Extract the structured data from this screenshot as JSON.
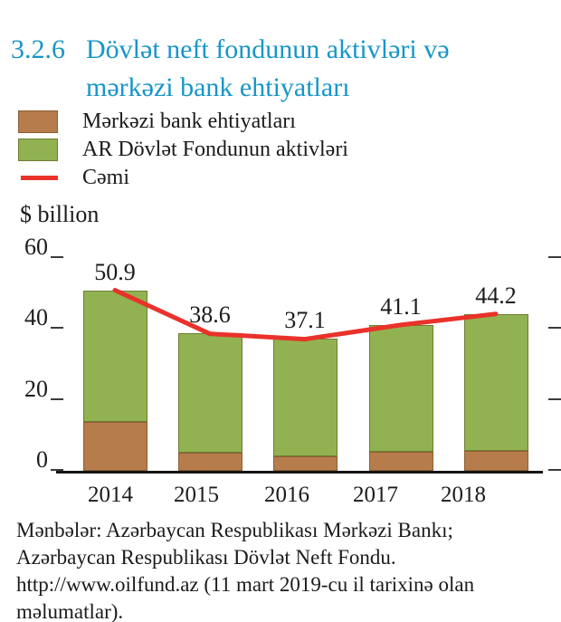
{
  "title": {
    "number": "3.2.6",
    "line1": "Dövlət neft fondunun aktivləri və",
    "line2": "mərkəzi bank ehtiyatları",
    "color": "#1796c8"
  },
  "legend": {
    "items": [
      {
        "label": "Mərkəzi bank ehtiyatları",
        "swatch": "rect",
        "color": "#b77c4b",
        "border": "#8c5f33"
      },
      {
        "label": "AR Dövlət Fondunun aktivləri",
        "swatch": "rect",
        "color": "#92b251",
        "border": "#6e7d35"
      },
      {
        "label": "Cəmi",
        "swatch": "line",
        "color": "#e93229",
        "border": "#e93229"
      }
    ]
  },
  "chart_data": {
    "type": "bar",
    "subtype": "stacked-bars-with-total-line",
    "title": "Dövlət neft fondunun aktivləri və mərkəzi bank ehtiyatları",
    "ylabel": "$ billion",
    "xlabel": "",
    "categories": [
      "2014",
      "2015",
      "2016",
      "2017",
      "2018"
    ],
    "series": [
      {
        "name": "Mərkəzi bank ehtiyatları",
        "color": "#b77c4b",
        "border": "#8c5f33",
        "values": [
          13.8,
          5.0,
          4.0,
          5.3,
          5.6
        ]
      },
      {
        "name": "AR Dövlət Fondunun aktivləri",
        "color": "#92b251",
        "border": "#6e7d35",
        "values": [
          37.1,
          33.6,
          33.1,
          35.8,
          38.6
        ]
      }
    ],
    "line_series": {
      "name": "Cəmi",
      "color": "#e93229",
      "values": [
        50.9,
        38.6,
        37.1,
        41.1,
        44.2
      ]
    },
    "data_labels": [
      "50.9",
      "38.6",
      "37.1",
      "41.1",
      "44.2"
    ],
    "yticks": [
      60,
      40,
      20,
      0
    ],
    "ylim": [
      0,
      64
    ],
    "grid": false,
    "legend_position": "top-left",
    "axis_color": "#141414",
    "text_color": "#1b1b1b"
  },
  "source": {
    "lines": [
      "Mənbələr: Azərbaycan Respublikası Mərkəzi Bankı;",
      "Azərbaycan Respublikası Dövlət Neft Fondu.",
      "http://www.oilfund.az (11 mart 2019-cu il tarixinə olan",
      "məlumatlar)."
    ]
  }
}
